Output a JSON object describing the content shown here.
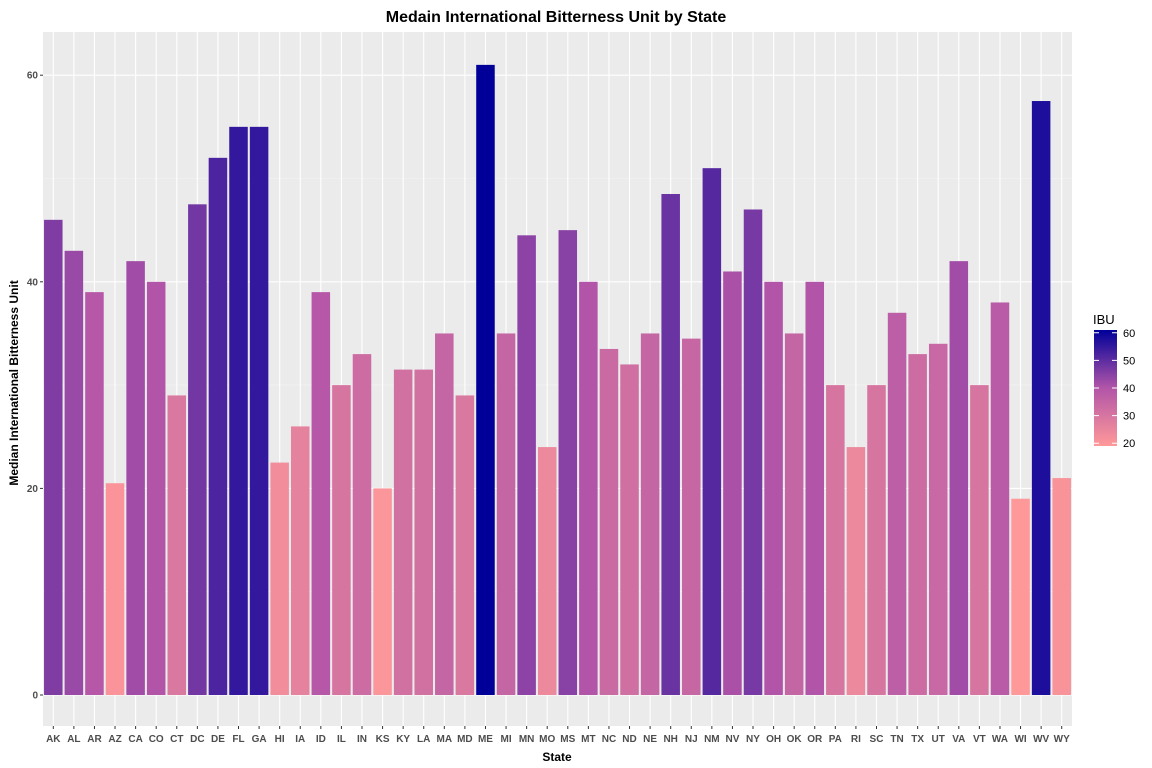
{
  "chart_data": {
    "type": "bar",
    "title": "Medain International Bitterness Unit by State",
    "xlabel": "State",
    "ylabel": "Median International Bitterness Unit",
    "ylim": [
      0,
      63
    ],
    "yticks": [
      0,
      20,
      40,
      60
    ],
    "grid": true,
    "legend": {
      "title": "IBU",
      "position": "right",
      "ticks": [
        20,
        30,
        40,
        50,
        60
      ],
      "range": [
        19,
        61
      ],
      "low_color": "#ff9999",
      "high_color": "#000099"
    },
    "categories": [
      "AK",
      "AL",
      "AR",
      "AZ",
      "CA",
      "CO",
      "CT",
      "DC",
      "DE",
      "FL",
      "GA",
      "HI",
      "IA",
      "ID",
      "IL",
      "IN",
      "KS",
      "KY",
      "LA",
      "MA",
      "MD",
      "ME",
      "MI",
      "MN",
      "MO",
      "MS",
      "MT",
      "NC",
      "ND",
      "NE",
      "NH",
      "NJ",
      "NM",
      "NV",
      "NY",
      "OH",
      "OK",
      "OR",
      "PA",
      "RI",
      "SC",
      "TN",
      "TX",
      "UT",
      "VA",
      "VT",
      "WA",
      "WI",
      "WV",
      "WY"
    ],
    "values": [
      46,
      43,
      39,
      20.5,
      42,
      40,
      29,
      47.5,
      52,
      55,
      55,
      22.5,
      26,
      39,
      30,
      33,
      20,
      31.5,
      31.5,
      35,
      29,
      61,
      35,
      44.5,
      24,
      45,
      40,
      33.5,
      32,
      35,
      48.5,
      34.5,
      51,
      41,
      47,
      40,
      35,
      40,
      30,
      24,
      30,
      37,
      33,
      34,
      42,
      30,
      38,
      19,
      57.5,
      21
    ]
  }
}
